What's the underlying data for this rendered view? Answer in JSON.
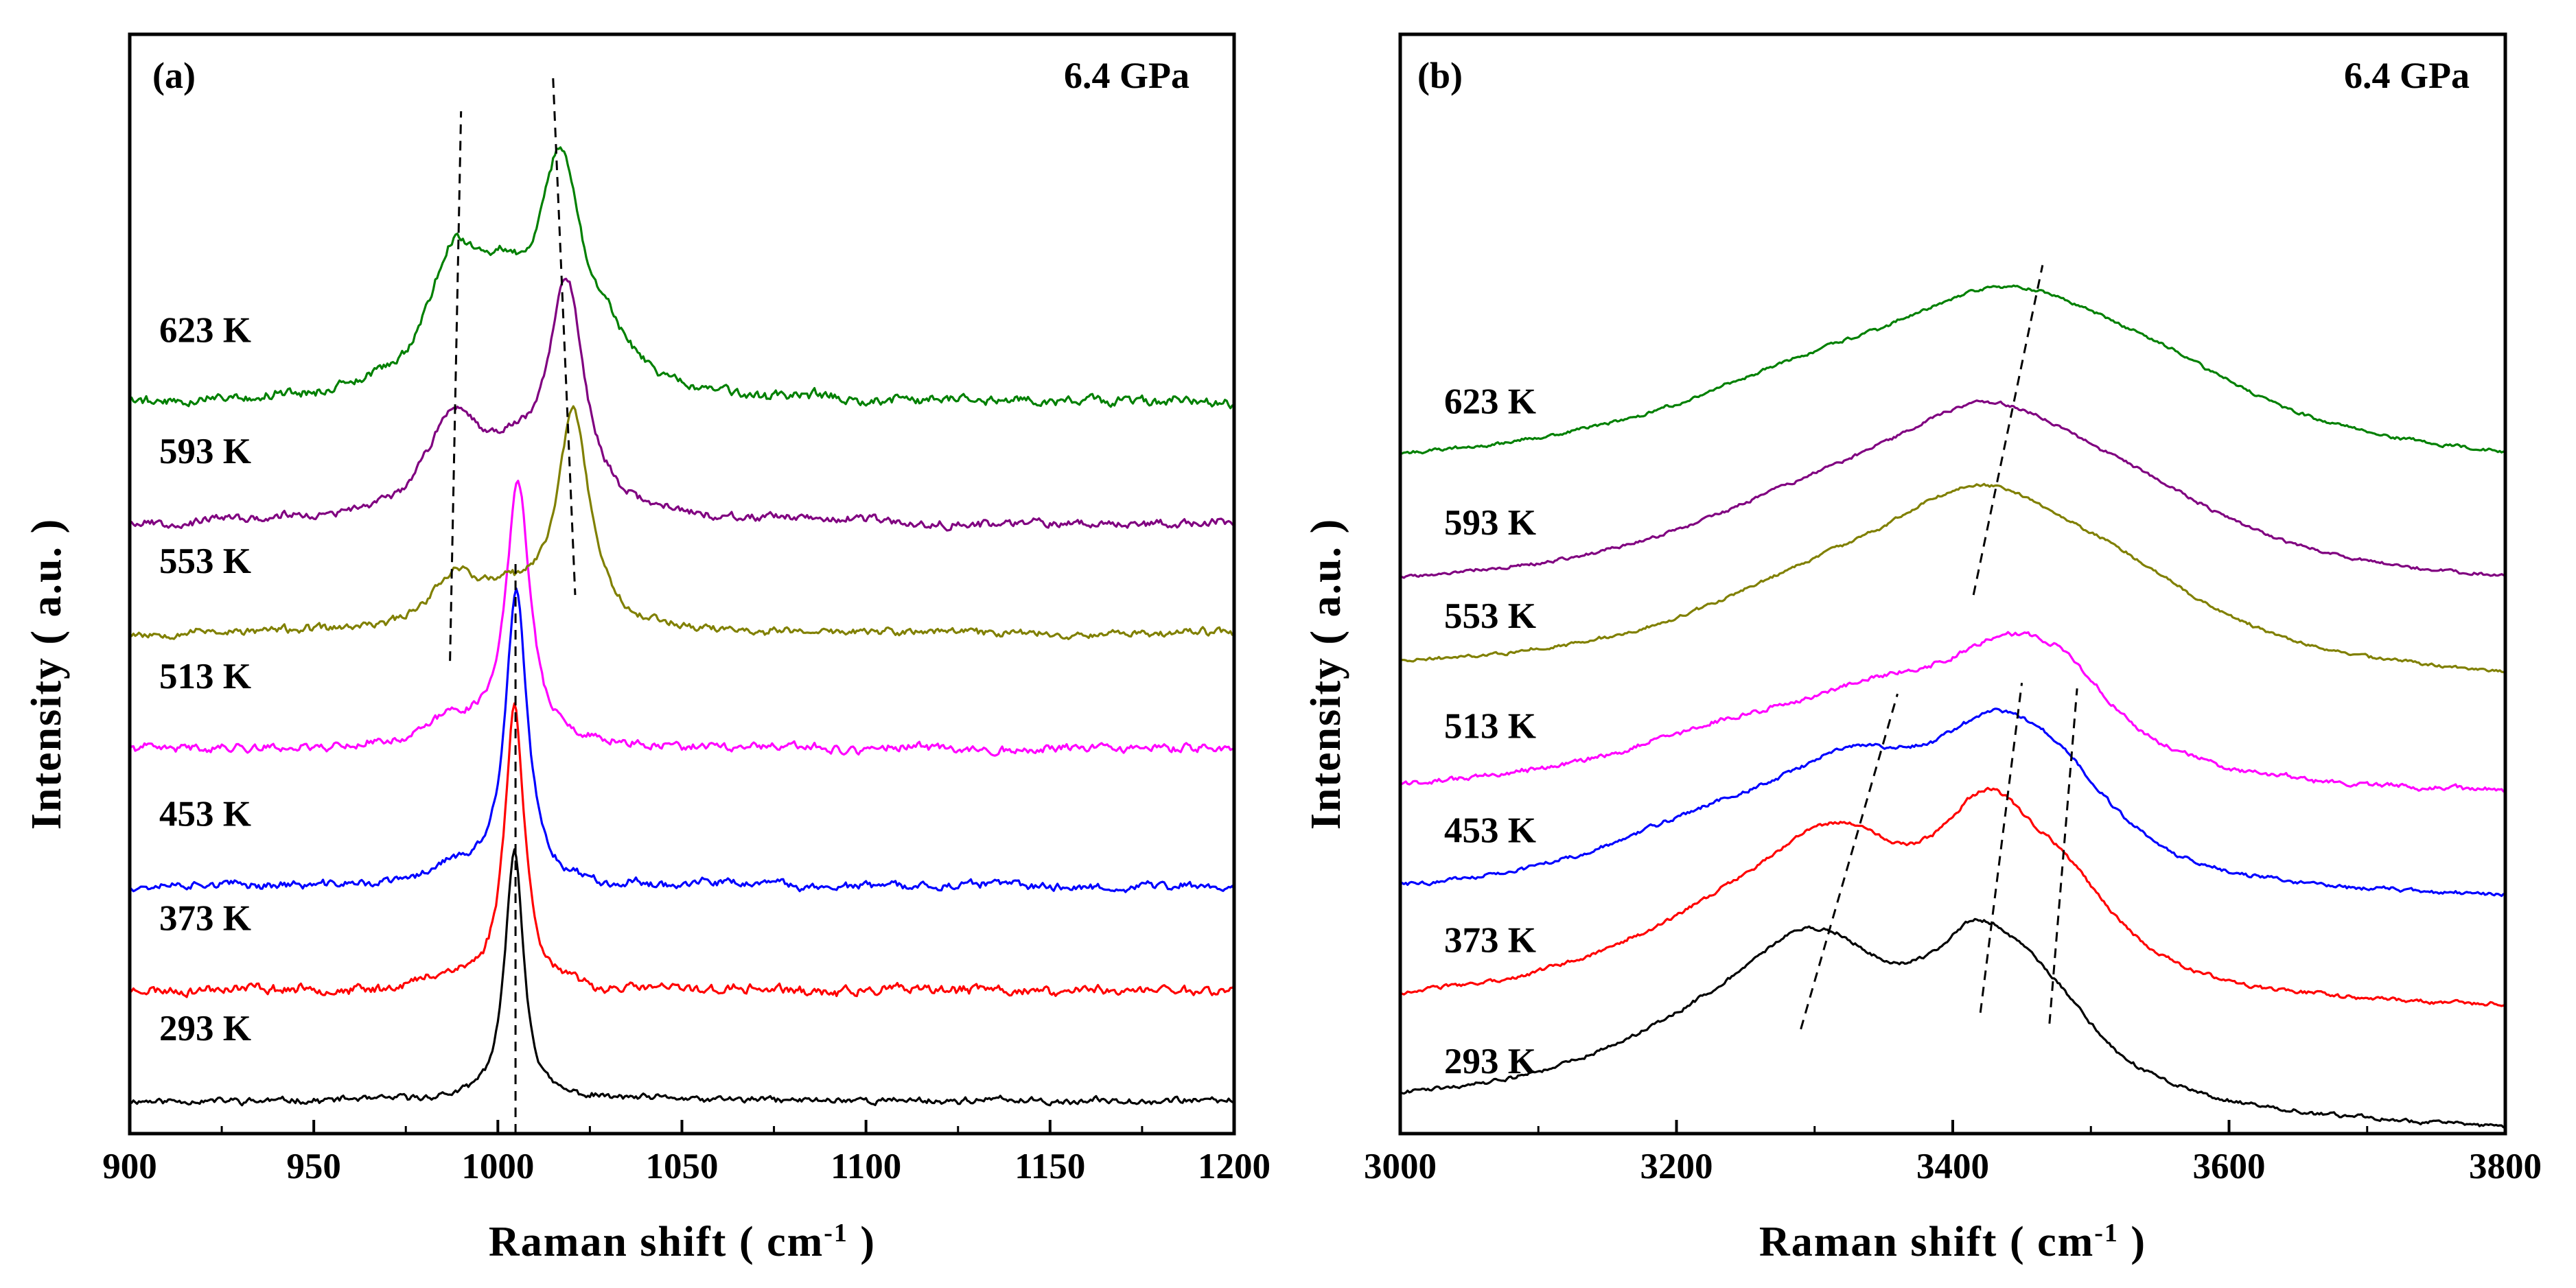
{
  "chart_data": [
    {
      "id": "panel_a",
      "type": "line",
      "panel_label": "(a)",
      "condition_label": "6.4 GPa",
      "xlabel": "Raman shift ( cm",
      "xlabel_sup": "-1",
      "xlabel_end": " )",
      "ylabel": "Intensity ( a.u. )",
      "xlim": [
        900,
        1200
      ],
      "ylim": [
        0,
        10
      ],
      "xticks": [
        900,
        950,
        1000,
        1050,
        1100,
        1150,
        1200
      ],
      "y_ticks_shown": false,
      "series": [
        {
          "name": "293 K",
          "color": "#000000",
          "offset": 0.3,
          "peaks": [
            {
              "x": 1004.5,
              "a": 2.3,
              "w": 3.0
            }
          ],
          "noise": 0.04,
          "seed": 11
        },
        {
          "name": "373 K",
          "color": "#ff0000",
          "offset": 1.3,
          "peaks": [
            {
              "x": 1004.5,
              "a": 2.6,
              "w": 3.3
            },
            {
              "x": 986,
              "a": 0.12,
              "w": 6
            }
          ],
          "noise": 0.06,
          "seed": 23
        },
        {
          "name": "453 K",
          "color": "#0000ff",
          "offset": 2.25,
          "peaks": [
            {
              "x": 1005,
              "a": 2.65,
              "w": 3.6
            },
            {
              "x": 987,
              "a": 0.15,
              "w": 7
            }
          ],
          "noise": 0.05,
          "seed": 37
        },
        {
          "name": "513 K",
          "color": "#ff00ff",
          "offset": 3.5,
          "peaks": [
            {
              "x": 1005.5,
              "a": 2.4,
              "w": 4.0
            },
            {
              "x": 988,
              "a": 0.25,
              "w": 8
            }
          ],
          "noise": 0.05,
          "seed": 41
        },
        {
          "name": "553 K",
          "color": "#808000",
          "offset": 4.55,
          "peaks": [
            {
              "x": 1020.5,
              "a": 1.95,
              "w": 5.5
            },
            {
              "x": 988,
              "a": 0.45,
              "w": 8
            },
            {
              "x": 1003,
              "a": 0.25,
              "w": 10
            }
          ],
          "noise": 0.05,
          "seed": 53
        },
        {
          "name": "593 K",
          "color": "#800080",
          "offset": 5.55,
          "peaks": [
            {
              "x": 1018.5,
              "a": 2.1,
              "w": 6.0
            },
            {
              "x": 988,
              "a": 0.9,
              "w": 9
            },
            {
              "x": 1003,
              "a": 0.4,
              "w": 9
            }
          ],
          "noise": 0.05,
          "seed": 67
        },
        {
          "name": "623 K",
          "color": "#008000",
          "offset": 6.65,
          "peaks": [
            {
              "x": 1017,
              "a": 1.95,
              "w": 7.0
            },
            {
              "x": 988,
              "a": 1.15,
              "w": 9
            },
            {
              "x": 1001,
              "a": 0.7,
              "w": 9
            },
            {
              "x": 1030,
              "a": 0.35,
              "w": 8
            }
          ],
          "noise": 0.06,
          "seed": 79
        }
      ],
      "guide_lines": [
        {
          "x1": 987,
          "y1": 4.3,
          "x2": 990,
          "y2": 9.3
        },
        {
          "x1": 1004.8,
          "y1": 0.0,
          "x2": 1004.8,
          "y2": 5.2
        },
        {
          "x1": 1015,
          "y1": 9.6,
          "x2": 1021,
          "y2": 4.9
        }
      ]
    },
    {
      "id": "panel_b",
      "type": "line",
      "panel_label": "(b)",
      "condition_label": "6.4 GPa",
      "xlabel": "Raman shift ( cm",
      "xlabel_sup": "-1",
      "xlabel_end": " )",
      "ylabel": "Intensity ( a.u. )",
      "xlim": [
        3000,
        3800
      ],
      "ylim": [
        0,
        10
      ],
      "xticks": [
        3000,
        3200,
        3400,
        3600,
        3800
      ],
      "y_ticks_shown": false,
      "series": [
        {
          "name": "293 K",
          "color": "#000000",
          "offset": 0.0,
          "peaks": [
            {
              "x": 3300,
              "a": 1.2,
              "w": 70
            },
            {
              "x": 3420,
              "a": 1.15,
              "w": 50
            },
            {
              "x": 3470,
              "a": 0.55,
              "w": 50
            },
            {
              "x": 3220,
              "a": 0.5,
              "w": 110
            }
          ],
          "base_end": 0.2,
          "noise": 0.025,
          "seed": 91
        },
        {
          "name": "373 K",
          "color": "#ff0000",
          "offset": 1.1,
          "peaks": [
            {
              "x": 3315,
              "a": 1.15,
              "w": 70
            },
            {
              "x": 3425,
              "a": 1.25,
              "w": 45
            },
            {
              "x": 3480,
              "a": 0.7,
              "w": 50
            },
            {
              "x": 3230,
              "a": 0.55,
              "w": 110
            }
          ],
          "base_end": 0.0,
          "noise": 0.025,
          "seed": 103
        },
        {
          "name": "453 K",
          "color": "#0000ff",
          "offset": 2.1,
          "peaks": [
            {
              "x": 3330,
              "a": 0.85,
              "w": 80
            },
            {
              "x": 3430,
              "a": 1.0,
              "w": 55
            },
            {
              "x": 3480,
              "a": 0.6,
              "w": 50
            },
            {
              "x": 3230,
              "a": 0.5,
              "w": 110
            }
          ],
          "base_end": 0.0,
          "noise": 0.025,
          "seed": 117
        },
        {
          "name": "513 K",
          "color": "#ff00ff",
          "offset": 3.05,
          "peaks": [
            {
              "x": 3350,
              "a": 0.6,
              "w": 90
            },
            {
              "x": 3440,
              "a": 0.75,
              "w": 60
            },
            {
              "x": 3480,
              "a": 0.55,
              "w": 50
            },
            {
              "x": 3240,
              "a": 0.4,
              "w": 120
            }
          ],
          "base_end": 0.0,
          "noise": 0.03,
          "seed": 131
        },
        {
          "name": "553 K",
          "color": "#808000",
          "offset": 4.05,
          "peaks": [
            {
              "x": 3420,
              "a": 1.3,
              "w": 95
            },
            {
              "x": 3300,
              "a": 0.55,
              "w": 120
            },
            {
              "x": 3520,
              "a": 0.5,
              "w": 90
            }
          ],
          "base_end": 0.1,
          "noise": 0.02,
          "seed": 149
        },
        {
          "name": "593 K",
          "color": "#800080",
          "offset": 4.9,
          "peaks": [
            {
              "x": 3425,
              "a": 1.25,
              "w": 100
            },
            {
              "x": 3300,
              "a": 0.55,
              "w": 130
            },
            {
              "x": 3530,
              "a": 0.45,
              "w": 100
            }
          ],
          "base_end": 0.0,
          "noise": 0.02,
          "seed": 163
        },
        {
          "name": "623 K",
          "color": "#008000",
          "offset": 6.0,
          "peaks": [
            {
              "x": 3440,
              "a": 1.2,
              "w": 110
            },
            {
              "x": 3300,
              "a": 0.6,
              "w": 140
            },
            {
              "x": 3550,
              "a": 0.45,
              "w": 100
            }
          ],
          "base_end": 0.0,
          "noise": 0.02,
          "seed": 179
        }
      ],
      "guide_lines": [
        {
          "x1": 3290,
          "y1": 0.95,
          "x2": 3360,
          "y2": 4.0
        },
        {
          "x1": 3420,
          "y1": 1.1,
          "x2": 3450,
          "y2": 4.1
        },
        {
          "x1": 3470,
          "y1": 1.0,
          "x2": 3490,
          "y2": 4.05
        },
        {
          "x1": 3415,
          "y1": 4.9,
          "x2": 3465,
          "y2": 7.9
        }
      ]
    }
  ]
}
